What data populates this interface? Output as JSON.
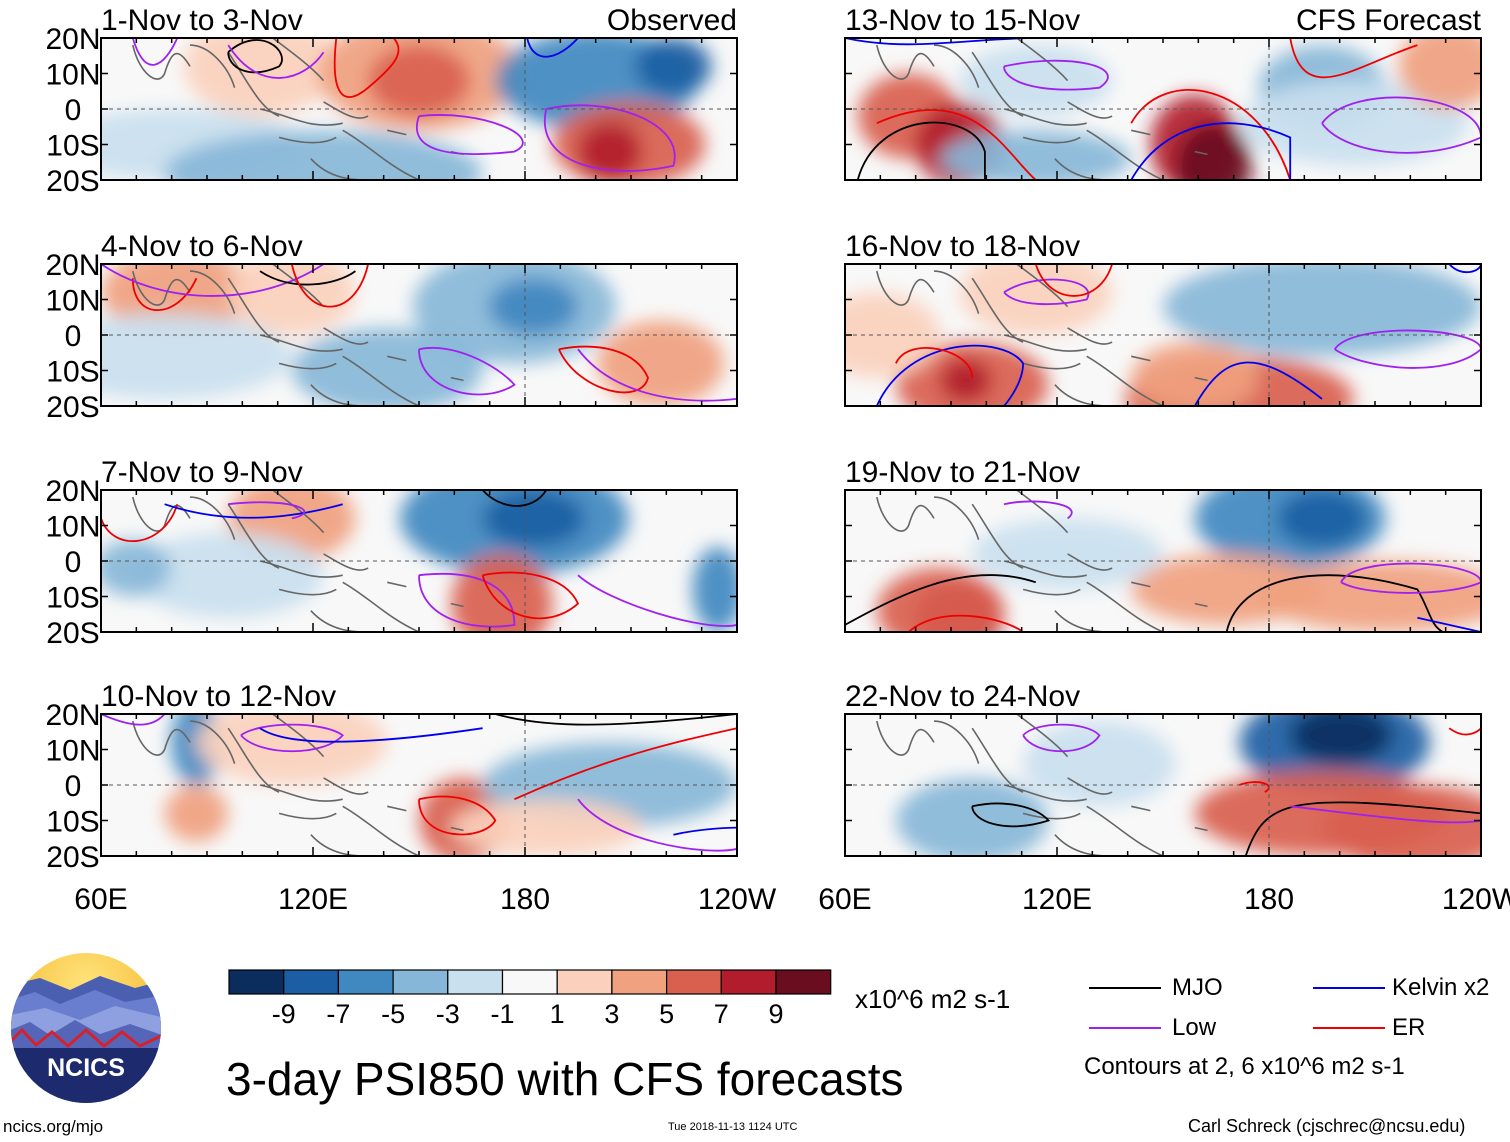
{
  "panels": [
    {
      "title": "1-Nov to 3-Nov",
      "tag": "Observed"
    },
    {
      "title": "13-Nov to 15-Nov",
      "tag": "CFS Forecast"
    },
    {
      "title": "4-Nov to 6-Nov",
      "tag": ""
    },
    {
      "title": "16-Nov to 18-Nov",
      "tag": ""
    },
    {
      "title": "7-Nov to 9-Nov",
      "tag": ""
    },
    {
      "title": "19-Nov to 21-Nov",
      "tag": ""
    },
    {
      "title": "10-Nov to 12-Nov",
      "tag": ""
    },
    {
      "title": "22-Nov to 24-Nov",
      "tag": ""
    }
  ],
  "axes": {
    "lat_labels": [
      "20N",
      "10N",
      "0",
      "10S",
      "20S"
    ],
    "lon_labels": [
      "60E",
      "120E",
      "180",
      "120W"
    ]
  },
  "colorbar": {
    "colors": [
      "#0a2d5e",
      "#1c5ea3",
      "#3f88c0",
      "#87b7d8",
      "#c9e0ef",
      "#f8f8f8",
      "#fbd1bd",
      "#f0a17f",
      "#d9604f",
      "#b21d2e",
      "#6a0d1e"
    ],
    "labels": [
      "-9",
      "-7",
      "-5",
      "-3",
      "-1",
      "1",
      "3",
      "5",
      "7",
      "9"
    ],
    "units": "x10^6 m2 s-1"
  },
  "legend": {
    "mjo": {
      "label": "MJO",
      "color": "#000000"
    },
    "kelvin": {
      "label": "Kelvin x2",
      "color": "#0000ee"
    },
    "low": {
      "label": "Low",
      "color": "#a020f0"
    },
    "er": {
      "label": "ER",
      "color": "#ee0000"
    },
    "note": "Contours at 2, 6 x10^6 m2 s-1"
  },
  "logo": {
    "text": "NCICS"
  },
  "title": "3-day PSI850 with CFS forecasts",
  "footer": {
    "url": "ncics.org/mjo",
    "timestamp": "Tue 2018-11-13 1124 UTC",
    "author": "Carl Schreck (cjschrec@ncsu.edu)"
  }
}
